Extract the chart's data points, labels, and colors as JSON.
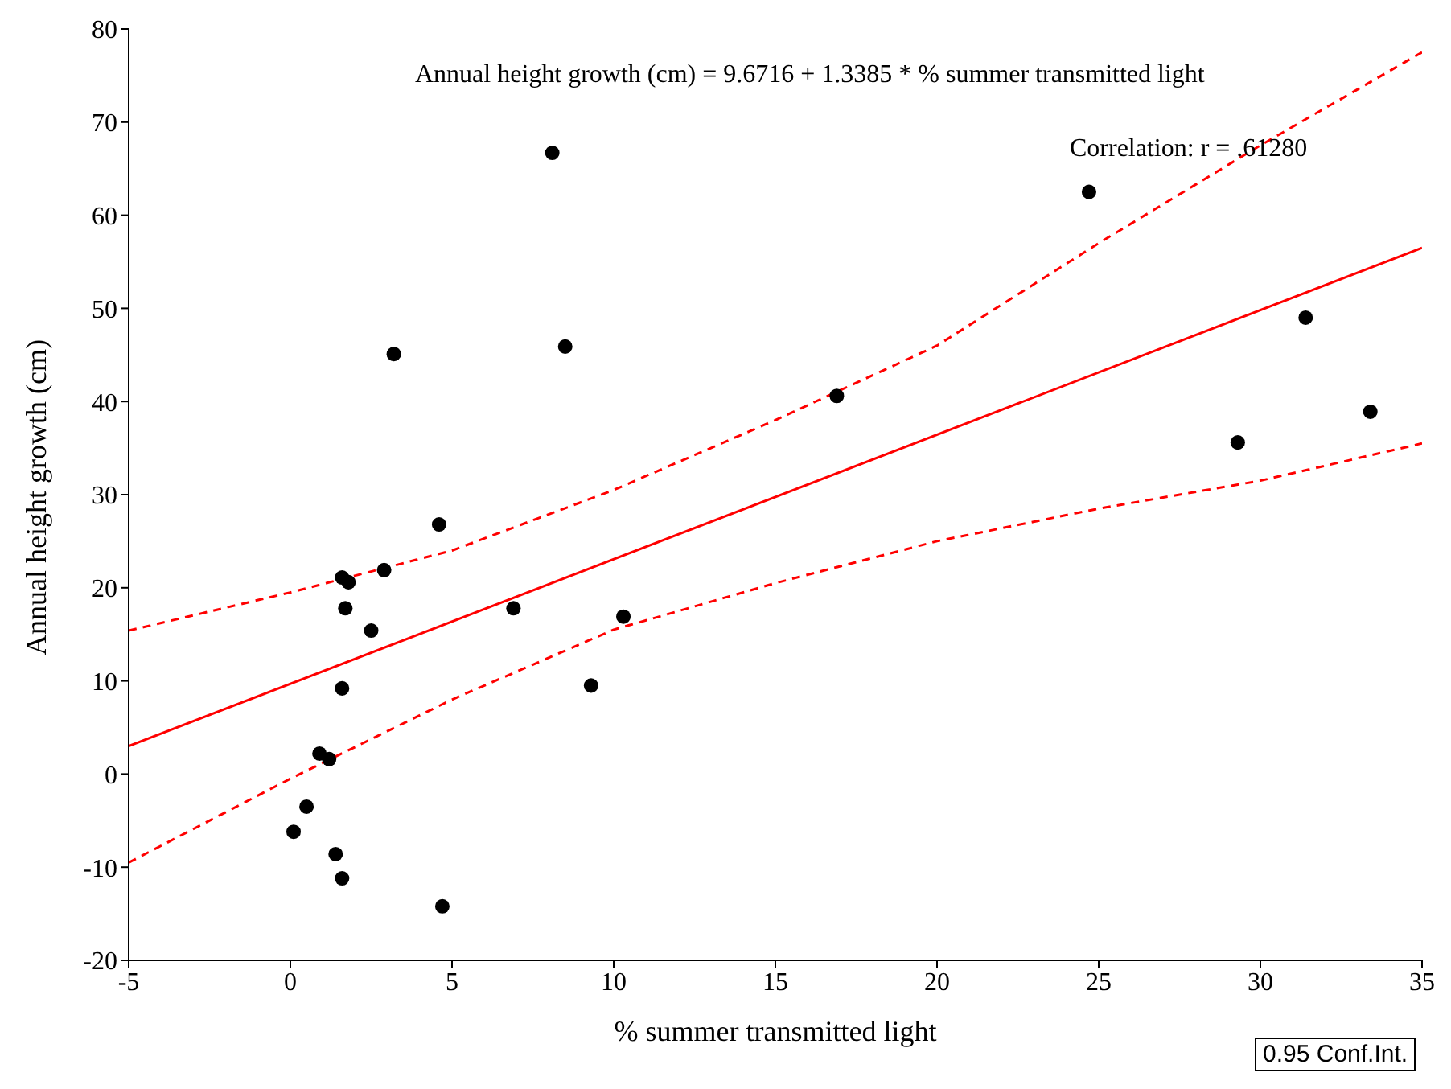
{
  "chart_data": {
    "type": "scatter",
    "xlabel": "% summer transmitted light",
    "ylabel": "Annual height growth (cm)",
    "xlim": [
      -5,
      35
    ],
    "ylim": [
      -20,
      80
    ],
    "xticks": [
      -5,
      0,
      5,
      10,
      15,
      20,
      25,
      30,
      35
    ],
    "yticks": [
      -20,
      -10,
      0,
      10,
      20,
      30,
      40,
      50,
      60,
      70,
      80
    ],
    "grid": false,
    "annotations": [
      "Annual height growth (cm) = 9.6716 + 1.3385 * % summer transmitted light",
      "Correlation: r = .61280",
      "0.95 Conf.Int."
    ],
    "series": [
      {
        "type": "scatter",
        "marker": "circle",
        "color": "#000000",
        "x": [
          0.1,
          0.5,
          0.9,
          1.2,
          1.4,
          1.6,
          1.6,
          1.6,
          1.7,
          1.8,
          2.5,
          2.9,
          3.2,
          4.6,
          4.7,
          6.9,
          8.1,
          8.5,
          9.3,
          10.3,
          16.9,
          24.7,
          29.3,
          31.4,
          33.4
        ],
        "values": [
          -6.2,
          -3.5,
          2.2,
          1.6,
          -8.6,
          21.1,
          -11.2,
          9.2,
          17.8,
          20.6,
          15.4,
          21.9,
          45.1,
          26.8,
          -14.2,
          17.8,
          66.7,
          45.9,
          9.5,
          16.9,
          40.6,
          62.5,
          35.6,
          49.0,
          38.9
        ]
      },
      {
        "type": "line",
        "marker": "none",
        "line_style": "solid",
        "color": "#ff0000",
        "x": [
          -5,
          35
        ],
        "values": [
          3.0,
          56.5
        ]
      },
      {
        "type": "line",
        "marker": "none",
        "line_style": "dashed",
        "color": "#ff0000",
        "x": [
          -5,
          0,
          5,
          10,
          15,
          20,
          25,
          30,
          35
        ],
        "values": [
          15.4,
          19.5,
          24,
          30.5,
          38,
          46,
          57,
          67.5,
          77.5
        ]
      },
      {
        "type": "line",
        "marker": "none",
        "line_style": "dashed",
        "color": "#ff0000",
        "x": [
          -5,
          0,
          5,
          10,
          15,
          20,
          25,
          30,
          35
        ],
        "values": [
          -9.5,
          -0.5,
          8,
          15.5,
          20.5,
          25,
          28.5,
          31.5,
          35.5
        ]
      }
    ]
  }
}
